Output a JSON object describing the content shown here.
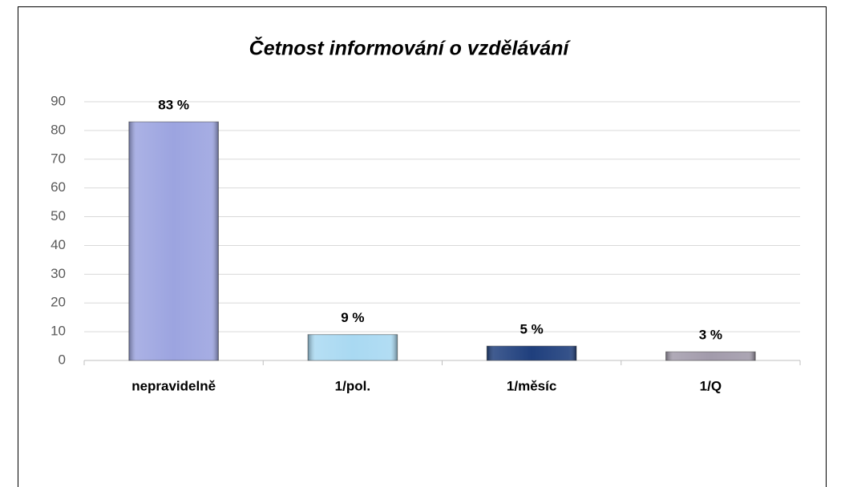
{
  "chart_data": {
    "type": "bar",
    "title": "Četnost informování o vzdělávání",
    "categories": [
      "nepravidelně",
      "1/pol.",
      "1/měsíc",
      "1/Q"
    ],
    "values": [
      83,
      9,
      5,
      3
    ],
    "value_labels": [
      "83 %",
      "9 %",
      "5 %",
      "3 %"
    ],
    "colors": [
      "#9ca4e0",
      "#a9d9f2",
      "#1f3f7d",
      "#a29bab"
    ],
    "ylim": [
      0,
      90
    ],
    "yticks": [
      0,
      10,
      20,
      30,
      40,
      50,
      60,
      70,
      80,
      90
    ],
    "grid": true
  }
}
